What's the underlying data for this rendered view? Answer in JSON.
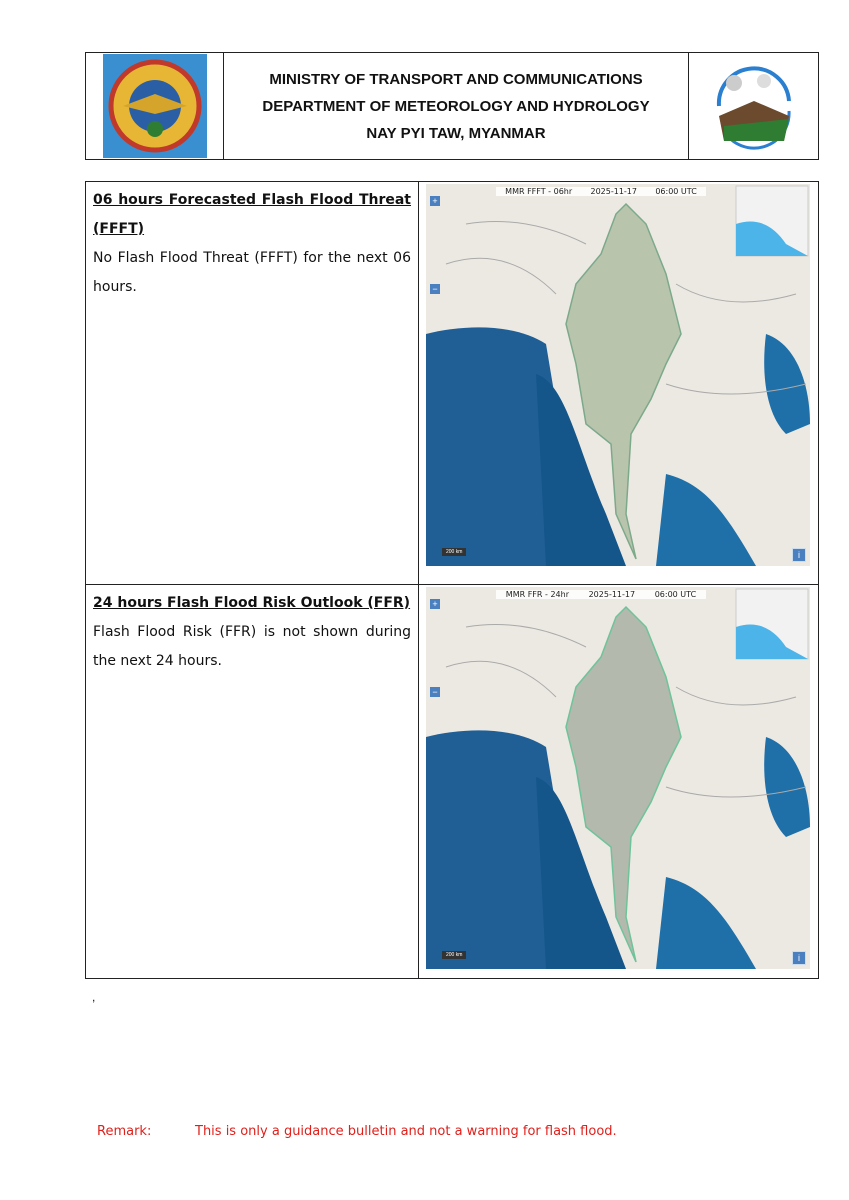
{
  "header": {
    "line1": "MINISTRY OF TRANSPORT AND COMMUNICATIONS",
    "line2": "DEPARTMENT OF METEOROLOGY AND HYDROLOGY",
    "line3": "NAY PYI TAW, MYANMAR",
    "left_logo": "ministry-emblem",
    "right_logo": "hydrological-cycle-logo"
  },
  "sections": [
    {
      "heading": "06 hours Forecasted Flash Flood Threat (FFFT)",
      "body": "No Flash Flood Threat (FFFT) for the next 06 hours.",
      "map": {
        "product": "MMR FFFT - 06hr",
        "date": "2025-11-17",
        "time": "06:00 UTC",
        "scale": "200 km"
      }
    },
    {
      "heading": "24 hours Flash Flood Risk Outlook (FFR)",
      "body": "Flash Flood Risk (FFR) is not shown during the next 24 hours.",
      "map": {
        "product": "MMR FFR - 24hr",
        "date": "2025-11-17",
        "time": "06:00 UTC",
        "scale": "200 km"
      }
    }
  ],
  "comma": ",",
  "remark": {
    "label": "Remark:",
    "text": "This is only a guidance bulletin and not a warning for flash flood."
  },
  "colors": {
    "remark": "#e0201b",
    "sea": "#1f6fa8",
    "land": "#ece9e2",
    "myanmar": "#b9c4ad"
  }
}
